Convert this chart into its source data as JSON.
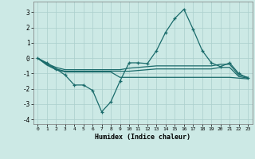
{
  "xlabel": "Humidex (Indice chaleur)",
  "xlim": [
    -0.5,
    23.5
  ],
  "ylim": [
    -4.3,
    3.7
  ],
  "yticks": [
    -4,
    -3,
    -2,
    -1,
    0,
    1,
    2,
    3
  ],
  "xticks": [
    0,
    1,
    2,
    3,
    4,
    5,
    6,
    7,
    8,
    9,
    10,
    11,
    12,
    13,
    14,
    15,
    16,
    17,
    18,
    19,
    20,
    21,
    22,
    23
  ],
  "background_color": "#cce9e5",
  "grid_color": "#aacfcc",
  "line_color": "#1a6b6b",
  "line1_x": [
    0,
    1,
    2,
    3,
    4,
    5,
    6,
    7,
    8,
    9,
    10,
    11,
    12,
    13,
    14,
    15,
    16,
    17,
    18,
    19,
    20,
    21,
    22,
    23
  ],
  "line1_y": [
    0.0,
    -0.3,
    -0.7,
    -1.1,
    -1.75,
    -1.75,
    -2.1,
    -3.5,
    -2.85,
    -1.5,
    -0.3,
    -0.3,
    -0.35,
    0.5,
    1.7,
    2.6,
    3.2,
    1.9,
    0.5,
    -0.3,
    -0.55,
    -0.3,
    -1.0,
    -1.3
  ],
  "line2_x": [
    0,
    1,
    2,
    3,
    4,
    5,
    6,
    7,
    8,
    9,
    10,
    11,
    12,
    13,
    14,
    15,
    16,
    17,
    18,
    19,
    20,
    21,
    22,
    23
  ],
  "line2_y": [
    0.0,
    -0.35,
    -0.6,
    -0.75,
    -0.75,
    -0.75,
    -0.75,
    -0.75,
    -0.75,
    -0.75,
    -0.65,
    -0.6,
    -0.55,
    -0.5,
    -0.5,
    -0.5,
    -0.5,
    -0.5,
    -0.5,
    -0.5,
    -0.4,
    -0.4,
    -1.1,
    -1.25
  ],
  "line3_x": [
    0,
    1,
    2,
    3,
    4,
    5,
    6,
    7,
    8,
    9,
    10,
    11,
    12,
    13,
    14,
    15,
    16,
    17,
    18,
    19,
    20,
    21,
    22,
    23
  ],
  "line3_y": [
    0.0,
    -0.4,
    -0.7,
    -0.85,
    -0.85,
    -0.85,
    -0.85,
    -0.85,
    -0.85,
    -0.85,
    -0.85,
    -0.8,
    -0.75,
    -0.7,
    -0.7,
    -0.7,
    -0.7,
    -0.7,
    -0.7,
    -0.7,
    -0.6,
    -0.6,
    -1.2,
    -1.3
  ],
  "line4_x": [
    0,
    1,
    2,
    3,
    4,
    5,
    6,
    7,
    8,
    9,
    10,
    11,
    12,
    13,
    14,
    15,
    16,
    17,
    18,
    19,
    20,
    21,
    22,
    23
  ],
  "line4_y": [
    0.0,
    -0.45,
    -0.75,
    -0.9,
    -0.9,
    -0.9,
    -0.9,
    -0.9,
    -0.9,
    -1.25,
    -1.25,
    -1.25,
    -1.25,
    -1.25,
    -1.25,
    -1.25,
    -1.25,
    -1.25,
    -1.25,
    -1.25,
    -1.25,
    -1.25,
    -1.3,
    -1.35
  ]
}
